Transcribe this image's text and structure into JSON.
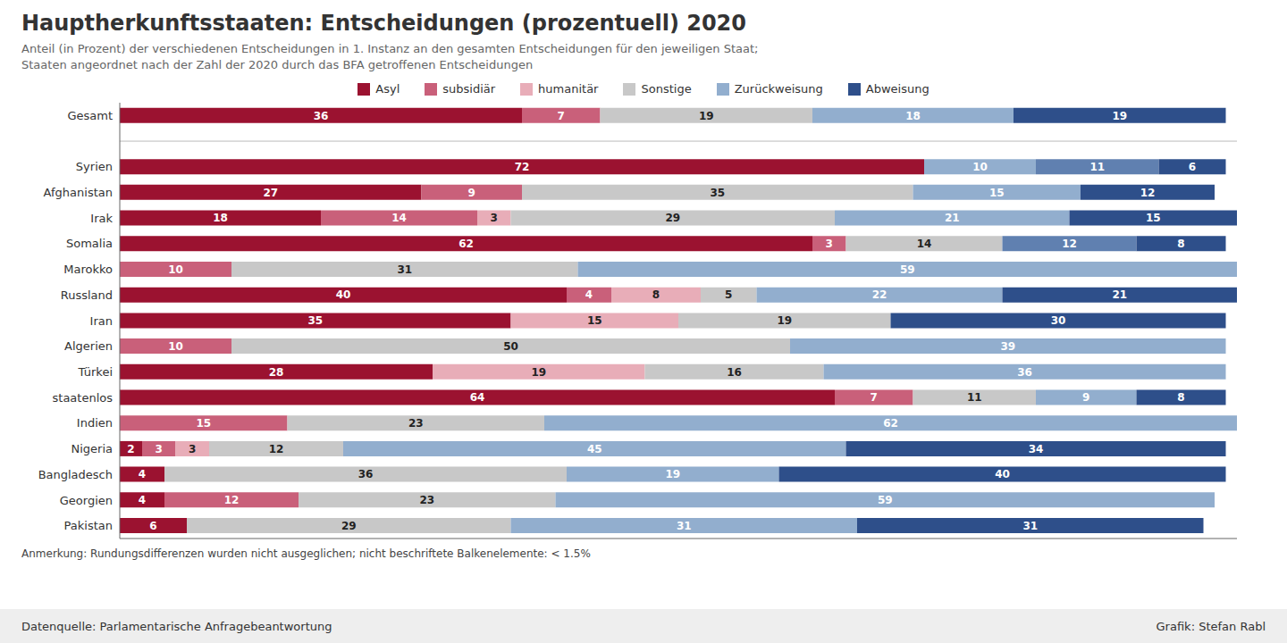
{
  "chart_data": {
    "type": "bar",
    "orientation": "horizontal",
    "stacked": true,
    "title": "Hauptherkunftsstaaten: Entscheidungen (prozentuell) 2020",
    "subtitle": "Anteil (in Prozent) der verschiedenen Entscheidungen in 1. Instanz an den gesamten Entscheidungen für den jeweiligen Staat;\nStaaten angeordnet nach der Zahl der 2020 durch das BFA getroffenen Entscheidungen",
    "annotations": [
      "Anmerkung: Rundungsdifferenzen wurden nicht ausgeglichen; nicht beschriftete Balkenelemente: < 1.5%",
      "Datenquelle: Parlamentarische Anfragebeantwortung",
      "Grafik: Stefan Rabl"
    ],
    "categories": [
      "Gesamt",
      null,
      "Syrien",
      "Afghanistan",
      "Irak",
      "Somalia",
      "Marokko",
      "Russland",
      "Iran",
      "Algerien",
      "Türkei",
      "staatenlos",
      "Indien",
      "Nigeria",
      "Bangladesch",
      "Georgien",
      "Pakistan"
    ],
    "series": [
      {
        "name": "Asyl",
        "color": "#9b1230",
        "values": [
          36,
          0,
          72,
          27,
          18,
          62,
          0,
          40,
          35,
          0,
          28,
          64,
          0,
          2,
          4,
          4,
          6
        ]
      },
      {
        "name": "subsidiär",
        "color": "#c9607a",
        "values": [
          7,
          0,
          0,
          9,
          14,
          3,
          10,
          4,
          0,
          10,
          0,
          7,
          15,
          3,
          0,
          12,
          0
        ]
      },
      {
        "name": "humanitär",
        "color": "#e8adb8",
        "values": [
          0,
          0,
          0,
          0,
          3,
          0,
          0,
          8,
          15,
          0,
          19,
          0,
          0,
          3,
          0,
          0,
          0
        ]
      },
      {
        "name": "Sonstige",
        "color": "#c8c8c8",
        "values": [
          19,
          0,
          0,
          35,
          29,
          14,
          31,
          5,
          19,
          50,
          16,
          11,
          23,
          12,
          36,
          23,
          29
        ]
      },
      {
        "name": "Zurückweisung",
        "color": "#92aece",
        "values": [
          18,
          0,
          10,
          15,
          21,
          0,
          59,
          22,
          0,
          39,
          36,
          9,
          62,
          45,
          19,
          59,
          31
        ]
      },
      {
        "color": "#6080b0",
        "values": [
          0,
          0,
          11,
          0,
          0,
          12,
          0,
          0,
          0,
          0,
          0,
          0,
          0,
          0,
          0,
          0,
          0
        ]
      },
      {
        "name": "Abweisung",
        "color": "#2e4f8a",
        "values": [
          19,
          0,
          6,
          12,
          15,
          8,
          0,
          21,
          30,
          0,
          0,
          8,
          0,
          34,
          40,
          0,
          31
        ]
      }
    ],
    "xlim": [
      0,
      100
    ],
    "data_labels": true,
    "tick_labels": "y",
    "grid": false,
    "legend": "top"
  }
}
